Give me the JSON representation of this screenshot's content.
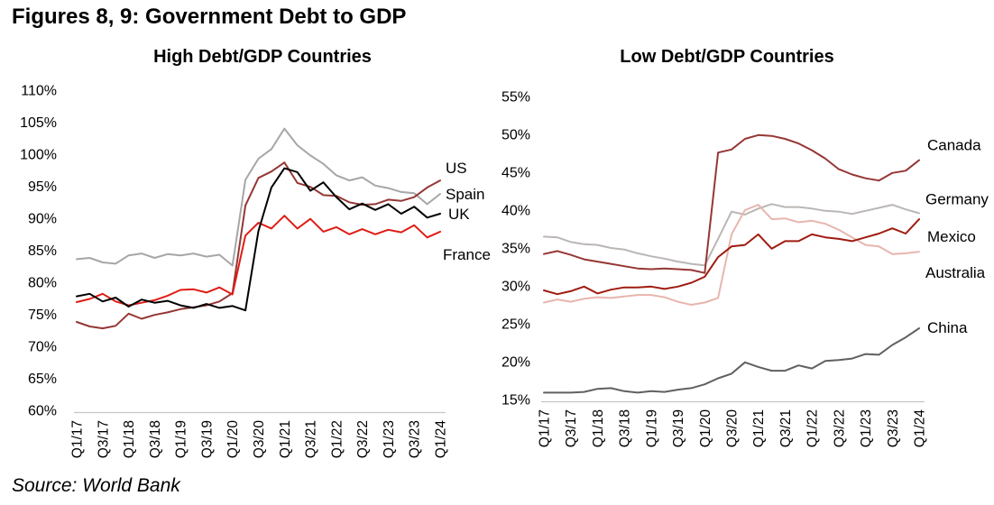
{
  "title": "Figures 8, 9: Government Debt to GDP",
  "source": "Source: World Bank",
  "chart_data": [
    {
      "type": "line",
      "title": "High Debt/GDP Countries",
      "ylabel": "Government debt to GDP",
      "ylim": [
        60,
        110
      ],
      "y_tick_step": 5,
      "y_tick_labels": [
        "110%",
        "105%",
        "100%",
        "95%",
        "90%",
        "85%",
        "80%",
        "75%",
        "70%",
        "65%",
        "60%"
      ],
      "x_tick_labels": [
        "Q1/17",
        "Q3/17",
        "Q1/18",
        "Q3/18",
        "Q1/19",
        "Q3/19",
        "Q1/20",
        "Q3/20",
        "Q1/21",
        "Q3/21",
        "Q1/22",
        "Q3/22",
        "Q1/23",
        "Q3/23",
        "Q1/24"
      ],
      "x_label_every": 2,
      "quarters": [
        "Q1/17",
        "Q2/17",
        "Q3/17",
        "Q4/17",
        "Q1/18",
        "Q2/18",
        "Q3/18",
        "Q4/18",
        "Q1/19",
        "Q2/19",
        "Q3/19",
        "Q4/19",
        "Q1/20",
        "Q2/20",
        "Q3/20",
        "Q4/20",
        "Q1/21",
        "Q2/21",
        "Q3/21",
        "Q4/21",
        "Q1/22",
        "Q2/22",
        "Q3/22",
        "Q4/22",
        "Q1/23",
        "Q2/23",
        "Q3/23",
        "Q4/23",
        "Q1/24"
      ],
      "grid": false,
      "legend": "end-of-line labels",
      "series": [
        {
          "name": "Spain",
          "color": "#a6a6a6",
          "values": [
            83.6,
            83.8,
            83.1,
            82.9,
            84.2,
            84.5,
            83.8,
            84.4,
            84.2,
            84.5,
            84.0,
            84.3,
            82.6,
            96.0,
            99.3,
            100.8,
            104.0,
            101.4,
            99.8,
            98.5,
            96.7,
            95.9,
            96.4,
            95.1,
            94.7,
            94.1,
            93.9,
            92.2,
            93.8
          ]
        },
        {
          "name": "US",
          "color": "#953735",
          "values": [
            73.8,
            73.1,
            72.8,
            73.2,
            75.1,
            74.3,
            74.9,
            75.3,
            75.8,
            76.1,
            76.4,
            77.0,
            78.3,
            92.0,
            96.3,
            97.3,
            98.7,
            95.5,
            94.9,
            93.6,
            93.5,
            92.5,
            92.1,
            92.2,
            92.9,
            92.7,
            93.3,
            94.8,
            95.9
          ]
        },
        {
          "name": "France",
          "color": "#df1d15",
          "values": [
            76.9,
            77.4,
            78.2,
            77.0,
            76.4,
            76.8,
            77.2,
            77.9,
            78.8,
            78.9,
            78.4,
            79.2,
            78.1,
            87.3,
            89.3,
            88.4,
            90.4,
            88.4,
            89.9,
            87.9,
            88.6,
            87.5,
            88.3,
            87.5,
            88.2,
            87.8,
            88.9,
            87.0,
            87.9
          ]
        },
        {
          "name": "UK",
          "color": "#000000",
          "values": [
            77.8,
            78.2,
            77.0,
            77.6,
            76.2,
            77.3,
            76.8,
            77.1,
            76.4,
            76.0,
            76.6,
            76.0,
            76.3,
            75.6,
            88.0,
            94.8,
            97.8,
            97.2,
            94.3,
            95.6,
            93.3,
            91.4,
            92.3,
            91.3,
            92.2,
            90.7,
            91.8,
            90.1,
            90.7
          ]
        }
      ]
    },
    {
      "type": "line",
      "title": "Low Debt/GDP Countries",
      "ylabel": "Government debt to GDP",
      "ylim": [
        15,
        55
      ],
      "y_tick_step": 5,
      "y_tick_labels": [
        "55%",
        "50%",
        "45%",
        "40%",
        "35%",
        "30%",
        "25%",
        "20%",
        "15%"
      ],
      "x_tick_labels": [
        "Q1/17",
        "Q3/17",
        "Q1/18",
        "Q3/18",
        "Q1/19",
        "Q3/19",
        "Q1/20",
        "Q3/20",
        "Q1/21",
        "Q3/21",
        "Q1/22",
        "Q3/22",
        "Q1/23",
        "Q3/23",
        "Q1/24"
      ],
      "x_label_every": 2,
      "quarters": [
        "Q1/17",
        "Q2/17",
        "Q3/17",
        "Q4/17",
        "Q1/18",
        "Q2/18",
        "Q3/18",
        "Q4/18",
        "Q1/19",
        "Q2/19",
        "Q3/19",
        "Q4/19",
        "Q1/20",
        "Q2/20",
        "Q3/20",
        "Q4/20",
        "Q1/21",
        "Q2/21",
        "Q3/21",
        "Q4/21",
        "Q1/22",
        "Q2/22",
        "Q3/22",
        "Q4/22",
        "Q1/23",
        "Q2/23",
        "Q3/23",
        "Q4/23",
        "Q1/24"
      ],
      "grid": false,
      "legend": "end-of-line labels",
      "series": [
        {
          "name": "Germany",
          "color": "#bab6b4",
          "values": [
            36.5,
            36.4,
            35.8,
            35.5,
            35.4,
            35.0,
            34.8,
            34.3,
            33.9,
            33.6,
            33.2,
            32.9,
            32.7,
            36.2,
            39.8,
            39.4,
            40.2,
            40.8,
            40.4,
            40.4,
            40.2,
            39.9,
            39.8,
            39.5,
            39.9,
            40.3,
            40.7,
            40.1,
            39.6
          ]
        },
        {
          "name": "Australia",
          "color": "#e7b6ae",
          "values": [
            27.8,
            28.2,
            27.9,
            28.3,
            28.5,
            28.4,
            28.6,
            28.8,
            28.8,
            28.5,
            27.9,
            27.5,
            27.8,
            28.4,
            36.8,
            40.0,
            40.7,
            38.8,
            38.9,
            38.4,
            38.6,
            38.2,
            37.4,
            36.4,
            35.4,
            35.2,
            34.2,
            34.3,
            34.5
          ]
        },
        {
          "name": "Canada",
          "color": "#953735",
          "values": [
            34.2,
            34.6,
            34.1,
            33.5,
            33.2,
            32.9,
            32.6,
            32.3,
            32.2,
            32.3,
            32.2,
            32.1,
            31.7,
            47.6,
            48.0,
            49.4,
            49.9,
            49.8,
            49.4,
            48.8,
            47.9,
            46.8,
            45.4,
            44.7,
            44.2,
            43.9,
            44.9,
            45.2,
            46.6
          ]
        },
        {
          "name": "China",
          "color": "#606060",
          "values": [
            15.9,
            15.9,
            15.9,
            16.0,
            16.4,
            16.5,
            16.1,
            15.9,
            16.1,
            16.0,
            16.3,
            16.5,
            17.0,
            17.8,
            18.4,
            19.9,
            19.3,
            18.8,
            18.8,
            19.5,
            19.1,
            20.1,
            20.2,
            20.4,
            21.0,
            20.9,
            22.2,
            23.2,
            24.4
          ]
        },
        {
          "name": "Mexico",
          "color": "#a01b10",
          "values": [
            29.4,
            28.9,
            29.3,
            29.9,
            29.0,
            29.5,
            29.8,
            29.8,
            29.9,
            29.6,
            29.9,
            30.4,
            31.2,
            33.8,
            35.2,
            35.4,
            36.8,
            34.9,
            35.9,
            35.9,
            36.8,
            36.4,
            36.2,
            35.9,
            36.4,
            36.9,
            37.6,
            36.9,
            38.8
          ]
        }
      ]
    }
  ]
}
